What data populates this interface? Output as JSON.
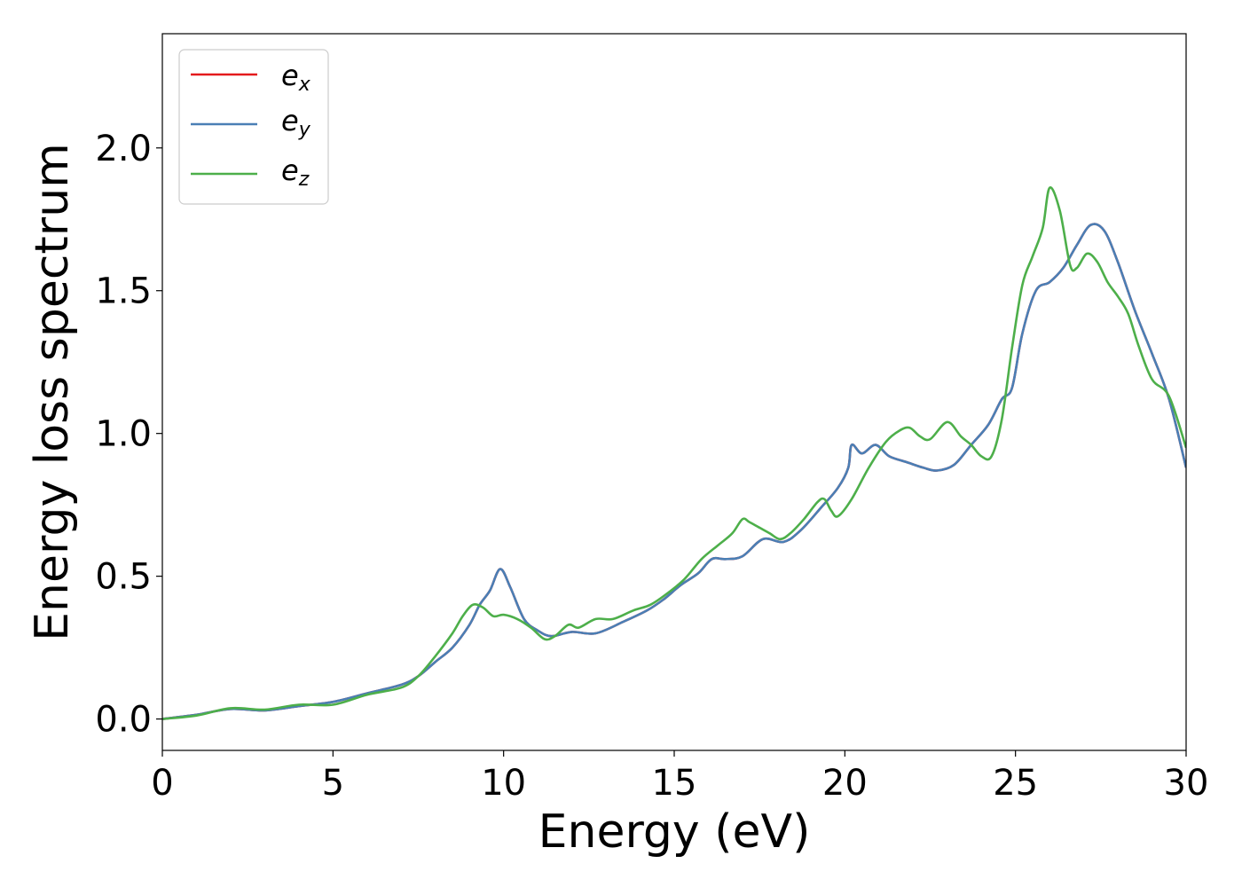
{
  "chart_data": {
    "type": "line",
    "title": "",
    "xlabel": "Energy (eV)",
    "ylabel": "Energy loss spectrum",
    "xlim": [
      0,
      30
    ],
    "ylim": [
      -0.11,
      2.4
    ],
    "xticks": [
      0,
      5,
      10,
      15,
      20,
      25,
      30
    ],
    "xtick_labels": [
      "0",
      "5",
      "10",
      "15",
      "20",
      "25",
      "30"
    ],
    "yticks": [
      0.0,
      0.5,
      1.0,
      1.5,
      2.0
    ],
    "ytick_labels": [
      "0.0",
      "0.5",
      "1.0",
      "1.5",
      "2.0"
    ],
    "grid": false,
    "legend_position": "top-left",
    "series": [
      {
        "name": "e_x",
        "legend_main": "e",
        "legend_sub": "x",
        "color": "#e41a1c",
        "x": [
          0,
          1,
          2,
          3,
          4,
          5,
          6,
          7,
          7.5,
          8,
          8.5,
          9,
          9.3,
          9.6,
          9.9,
          10.2,
          10.6,
          11,
          11.4,
          12,
          12.7,
          13.5,
          14.2,
          14.7,
          15.2,
          15.7,
          16.1,
          16.5,
          17,
          17.6,
          18.2,
          18.7,
          19.3,
          19.8,
          20.1,
          20.2,
          20.5,
          20.9,
          21.3,
          21.8,
          22.3,
          22.7,
          23.2,
          23.7,
          24.2,
          24.6,
          24.9,
          25.2,
          25.6,
          26,
          26.4,
          26.8,
          27.2,
          27.6,
          28,
          28.5,
          29,
          29.5,
          30
        ],
        "y": [
          0.0,
          0.015,
          0.035,
          0.03,
          0.045,
          0.06,
          0.09,
          0.12,
          0.15,
          0.2,
          0.25,
          0.33,
          0.4,
          0.45,
          0.525,
          0.46,
          0.35,
          0.31,
          0.29,
          0.305,
          0.3,
          0.34,
          0.38,
          0.42,
          0.47,
          0.51,
          0.56,
          0.56,
          0.57,
          0.63,
          0.62,
          0.66,
          0.74,
          0.81,
          0.88,
          0.96,
          0.93,
          0.96,
          0.92,
          0.9,
          0.88,
          0.87,
          0.89,
          0.96,
          1.03,
          1.12,
          1.16,
          1.35,
          1.5,
          1.53,
          1.58,
          1.66,
          1.73,
          1.71,
          1.6,
          1.43,
          1.28,
          1.12,
          0.88
        ]
      },
      {
        "name": "e_y",
        "legend_main": "e",
        "legend_sub": "y",
        "color": "#4a7fb5",
        "x": [
          0,
          1,
          2,
          3,
          4,
          5,
          6,
          7,
          7.5,
          8,
          8.5,
          9,
          9.3,
          9.6,
          9.9,
          10.2,
          10.6,
          11,
          11.4,
          12,
          12.7,
          13.5,
          14.2,
          14.7,
          15.2,
          15.7,
          16.1,
          16.5,
          17,
          17.6,
          18.2,
          18.7,
          19.3,
          19.8,
          20.1,
          20.2,
          20.5,
          20.9,
          21.3,
          21.8,
          22.3,
          22.7,
          23.2,
          23.7,
          24.2,
          24.6,
          24.9,
          25.2,
          25.6,
          26,
          26.4,
          26.8,
          27.2,
          27.6,
          28,
          28.5,
          29,
          29.5,
          30
        ],
        "y": [
          0.0,
          0.015,
          0.035,
          0.03,
          0.045,
          0.06,
          0.09,
          0.12,
          0.15,
          0.2,
          0.25,
          0.33,
          0.4,
          0.45,
          0.525,
          0.46,
          0.35,
          0.31,
          0.29,
          0.305,
          0.3,
          0.34,
          0.38,
          0.42,
          0.47,
          0.51,
          0.56,
          0.56,
          0.57,
          0.63,
          0.62,
          0.66,
          0.74,
          0.81,
          0.88,
          0.96,
          0.93,
          0.96,
          0.92,
          0.9,
          0.88,
          0.87,
          0.89,
          0.96,
          1.03,
          1.12,
          1.16,
          1.35,
          1.5,
          1.53,
          1.58,
          1.66,
          1.73,
          1.71,
          1.6,
          1.43,
          1.28,
          1.12,
          0.88
        ]
      },
      {
        "name": "e_z",
        "legend_main": "e",
        "legend_sub": "z",
        "color": "#4daf4a",
        "x": [
          0,
          1,
          2,
          3,
          4,
          5,
          6,
          7,
          7.5,
          8,
          8.5,
          8.8,
          9.1,
          9.4,
          9.7,
          10,
          10.4,
          10.8,
          11.2,
          11.5,
          11.9,
          12.2,
          12.7,
          13.2,
          13.8,
          14.3,
          14.8,
          15.3,
          15.8,
          16.3,
          16.7,
          17,
          17.2,
          17.5,
          17.8,
          18.1,
          18.4,
          18.8,
          19.2,
          19.4,
          19.6,
          19.8,
          20.2,
          20.7,
          21.2,
          21.6,
          21.9,
          22.2,
          22.5,
          23,
          23.4,
          23.7,
          24,
          24.3,
          24.6,
          24.9,
          25.2,
          25.5,
          25.8,
          26,
          26.3,
          26.6,
          26.8,
          27.1,
          27.4,
          27.7,
          28,
          28.3,
          28.6,
          29,
          29.5,
          30
        ],
        "y": [
          0.0,
          0.012,
          0.038,
          0.033,
          0.05,
          0.05,
          0.085,
          0.11,
          0.15,
          0.22,
          0.3,
          0.36,
          0.4,
          0.39,
          0.36,
          0.365,
          0.35,
          0.32,
          0.28,
          0.29,
          0.33,
          0.32,
          0.35,
          0.35,
          0.38,
          0.4,
          0.44,
          0.49,
          0.56,
          0.61,
          0.65,
          0.7,
          0.69,
          0.67,
          0.65,
          0.63,
          0.65,
          0.7,
          0.76,
          0.77,
          0.73,
          0.71,
          0.77,
          0.88,
          0.97,
          1.01,
          1.02,
          0.99,
          0.98,
          1.04,
          0.99,
          0.96,
          0.92,
          0.92,
          1.05,
          1.3,
          1.52,
          1.62,
          1.72,
          1.86,
          1.78,
          1.59,
          1.58,
          1.63,
          1.6,
          1.53,
          1.48,
          1.42,
          1.31,
          1.19,
          1.13,
          0.95
        ]
      }
    ]
  }
}
